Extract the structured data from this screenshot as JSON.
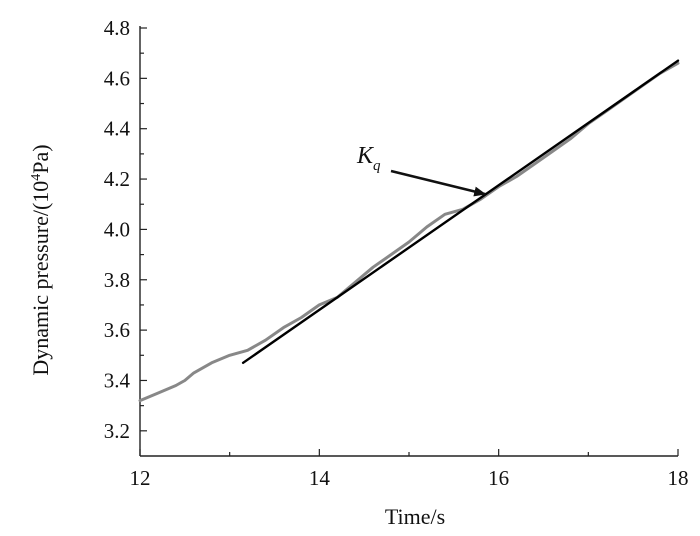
{
  "chart_data": {
    "type": "line",
    "xlabel": "Time/s",
    "ylabel_prefix": "Dynamic pressure/(10",
    "ylabel_sup": "4",
    "ylabel_suffix": "Pa)",
    "xlim": [
      12,
      18
    ],
    "ylim": [
      3.1,
      4.8
    ],
    "xticks": [
      12,
      14,
      16,
      18
    ],
    "yticks": [
      3.2,
      3.4,
      3.6,
      3.8,
      4.0,
      4.2,
      4.4,
      4.6,
      4.8
    ],
    "ytick_labels": [
      "3.2",
      "3.4",
      "3.6",
      "3.8",
      "4.0",
      "4.2",
      "4.4",
      "4.6",
      "4.8"
    ],
    "series": [
      {
        "color": "#888888",
        "x": [
          12.0,
          12.2,
          12.4,
          12.5,
          12.6,
          12.8,
          13.0,
          13.2,
          13.4,
          13.6,
          13.8,
          14.0,
          14.2,
          14.4,
          14.6,
          14.8,
          15.0,
          15.2,
          15.4,
          15.6,
          15.8,
          16.0,
          16.2,
          16.4,
          16.6,
          16.8,
          17.0,
          17.2,
          17.4,
          17.6,
          17.8,
          18.0
        ],
        "y": [
          3.32,
          3.35,
          3.38,
          3.4,
          3.43,
          3.47,
          3.5,
          3.52,
          3.56,
          3.61,
          3.65,
          3.7,
          3.73,
          3.79,
          3.85,
          3.9,
          3.95,
          4.01,
          4.06,
          4.08,
          4.12,
          4.17,
          4.21,
          4.26,
          4.31,
          4.36,
          4.42,
          4.47,
          4.52,
          4.57,
          4.62,
          4.66
        ]
      },
      {
        "color": "#000000",
        "x": [
          13.15,
          18.0
        ],
        "y": [
          3.47,
          4.67
        ]
      }
    ],
    "annotation": {
      "text": "K",
      "subscript": "q",
      "arrow_to": [
        15.85,
        4.14
      ]
    }
  }
}
